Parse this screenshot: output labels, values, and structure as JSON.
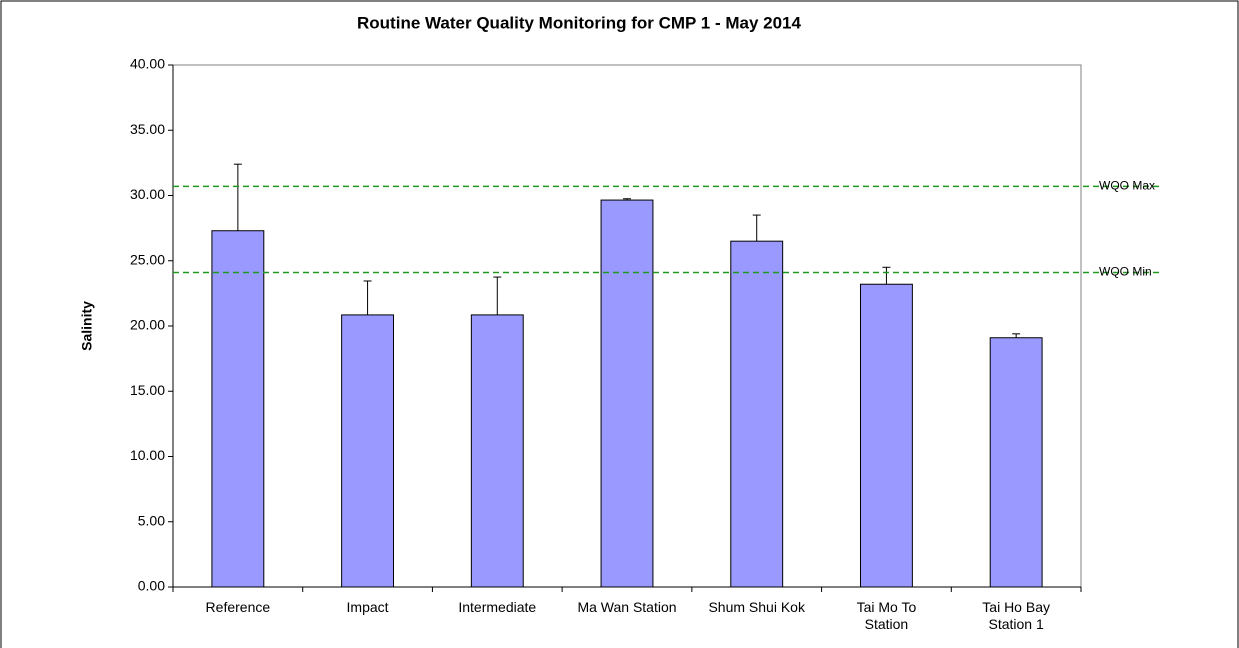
{
  "chart_data": {
    "type": "bar",
    "title": "Routine Water Quality Monitoring for CMP 1 - May 2014",
    "y_label": "Salinity",
    "categories": [
      "Reference",
      "Impact",
      "Intermediate",
      "Ma Wan Station",
      "Shum Shui Kok",
      "Tai Mo To\nStation",
      "Tai Ho Bay\nStation 1"
    ],
    "series": [
      {
        "color": "#9999ff",
        "values": [
          27.3,
          20.85,
          20.85,
          29.65,
          26.5,
          23.2,
          19.1
        ],
        "errors": [
          5.1,
          2.6,
          2.9,
          0.1,
          2.0,
          1.3,
          0.3
        ]
      }
    ],
    "reference_lines": [
      {
        "label": "WQO Max",
        "value": 30.7,
        "color": "#1f9a1f"
      },
      {
        "label": "WQO Min",
        "value": 24.1,
        "color": "#1f9a1f"
      }
    ],
    "ylim": [
      0,
      40
    ],
    "yticks": [
      {
        "value": 0,
        "label": "0.00"
      },
      {
        "value": 5,
        "label": "5.00"
      },
      {
        "value": 10,
        "label": "10.00"
      },
      {
        "value": 15,
        "label": "15.00"
      },
      {
        "value": 20,
        "label": "20.00"
      },
      {
        "value": 25,
        "label": "25.00"
      },
      {
        "value": 30,
        "label": "30.00"
      },
      {
        "value": 35,
        "label": "35.00"
      },
      {
        "value": 40,
        "label": "40.00"
      }
    ],
    "grid": false
  }
}
